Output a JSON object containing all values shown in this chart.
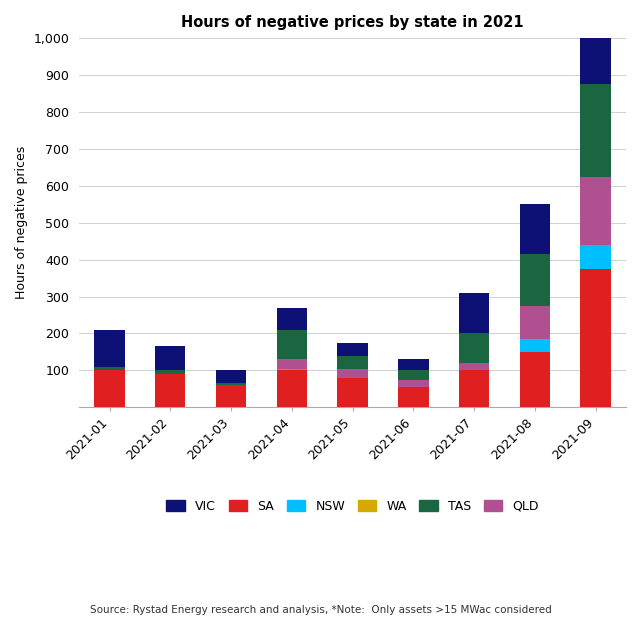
{
  "categories": [
    "2021-01",
    "2021-02",
    "2021-03",
    "2021-04",
    "2021-05",
    "2021-06",
    "2021-07",
    "2021-08",
    "2021-09"
  ],
  "series": {
    "SA": [
      100,
      90,
      60,
      100,
      80,
      55,
      100,
      150,
      375
    ],
    "NSW": [
      0,
      0,
      0,
      3,
      0,
      0,
      0,
      35,
      65
    ],
    "WA": [
      0,
      0,
      0,
      2,
      0,
      0,
      0,
      0,
      0
    ],
    "QLD": [
      0,
      0,
      0,
      25,
      25,
      20,
      20,
      90,
      185
    ],
    "TAS": [
      10,
      10,
      5,
      80,
      35,
      25,
      80,
      140,
      250
    ],
    "VIC": [
      100,
      65,
      35,
      60,
      35,
      30,
      110,
      135,
      225
    ]
  },
  "colors": {
    "SA": "#e02020",
    "NSW": "#00bfff",
    "WA": "#d4aa00",
    "QLD": "#b05090",
    "TAS": "#1a6640",
    "VIC": "#0d1175"
  },
  "order": [
    "SA",
    "NSW",
    "WA",
    "QLD",
    "TAS",
    "VIC"
  ],
  "title": "Hours of negative prices by state in 2021",
  "ylabel": "Hours of negative prices",
  "ylim": [
    0,
    1000
  ],
  "yticks": [
    0,
    100,
    200,
    300,
    400,
    500,
    600,
    700,
    800,
    900,
    1000
  ],
  "ytick_labels": [
    "",
    "100",
    "200",
    "300",
    "400",
    "500",
    "600",
    "700",
    "800",
    "900",
    "1,000"
  ],
  "source_text": "Source: Rystad Energy research and analysis, *Note:  Only assets >15 MWac considered",
  "legend_order": [
    "VIC",
    "SA",
    "NSW",
    "WA",
    "TAS",
    "QLD"
  ]
}
